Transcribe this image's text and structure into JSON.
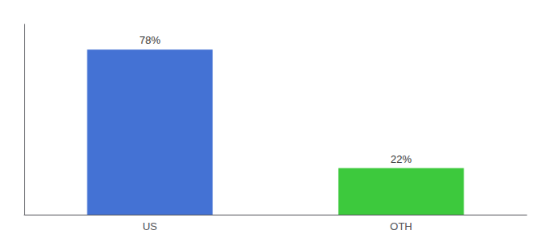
{
  "chart_data": {
    "type": "bar",
    "categories": [
      "US",
      "OTH"
    ],
    "values": [
      78,
      22
    ],
    "value_labels": [
      "78%",
      "22%"
    ],
    "data_labels": true,
    "colors": [
      "#4472d4",
      "#3dc93d"
    ],
    "ylim": [
      0,
      90
    ],
    "tick_labels": "x",
    "grid": false
  }
}
